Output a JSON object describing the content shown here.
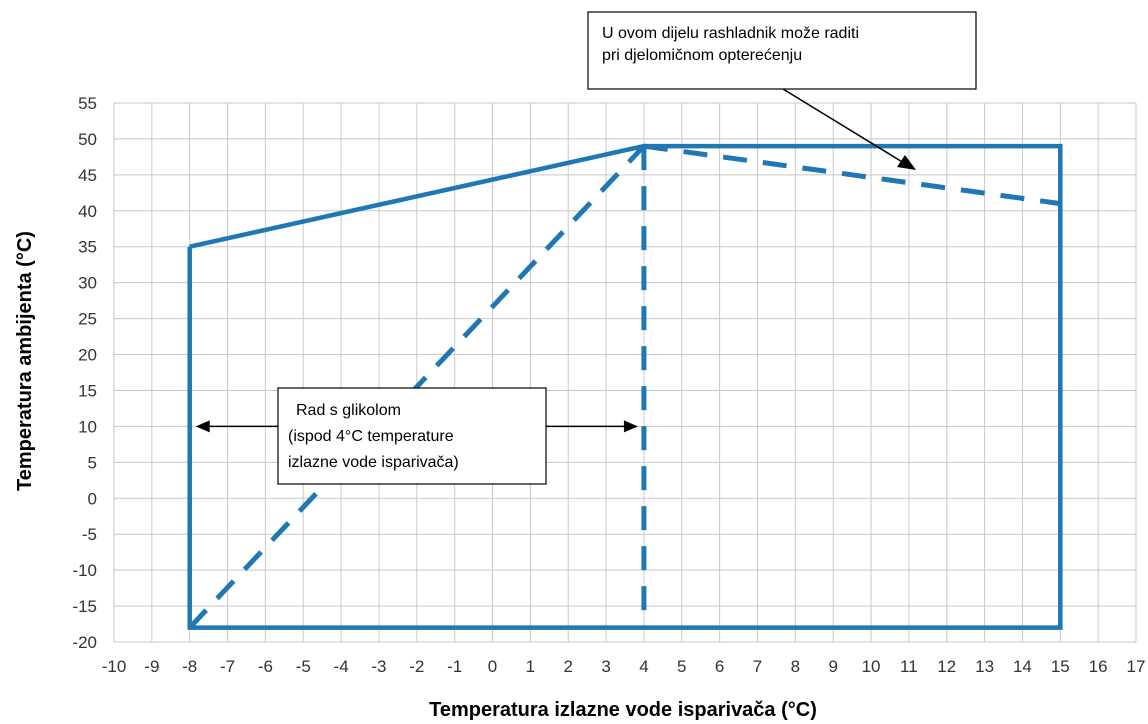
{
  "chart_data": {
    "type": "line",
    "title": "",
    "xlabel": "Temperatura izlazne vode isparivača (°C)",
    "ylabel": "Temperatura ambijenta (°C)",
    "xlim": [
      -10,
      17
    ],
    "ylim": [
      -20,
      55
    ],
    "x_ticks": [
      -10,
      -9,
      -8,
      -7,
      -6,
      -5,
      -4,
      -3,
      -2,
      -1,
      0,
      1,
      2,
      3,
      4,
      5,
      6,
      7,
      8,
      9,
      10,
      11,
      12,
      13,
      14,
      15,
      16,
      17
    ],
    "y_ticks": [
      55,
      50,
      45,
      40,
      35,
      30,
      25,
      20,
      15,
      10,
      5,
      0,
      -5,
      -10,
      -15,
      -20
    ],
    "grid": true,
    "line_color": "#1f77b4",
    "series": [
      {
        "style": "solid",
        "x": [
          -8,
          4,
          15,
          15,
          -8,
          -8
        ],
        "y": [
          35,
          49,
          49,
          -18,
          -18,
          35
        ]
      },
      {
        "style": "dashed",
        "x": [
          -8,
          4
        ],
        "y": [
          -18,
          49
        ]
      },
      {
        "style": "dashed",
        "x": [
          4,
          4
        ],
        "y": [
          49,
          -18
        ]
      },
      {
        "style": "dashed",
        "x": [
          4,
          15
        ],
        "y": [
          49,
          41
        ]
      }
    ],
    "annotations": [
      {
        "id": "partial-load-note",
        "lines": [
          "U ovom  dijelu  rashladnik može raditi",
          "pri djelomičnom opterećenju"
        ]
      },
      {
        "id": "glycol-note",
        "lines": [
          "Rad s glikolom",
          "(ispod  4°C  temperature",
          "izlazne vode isparivača)"
        ],
        "range_x": [
          -8,
          4
        ],
        "range_y": 10
      }
    ]
  }
}
